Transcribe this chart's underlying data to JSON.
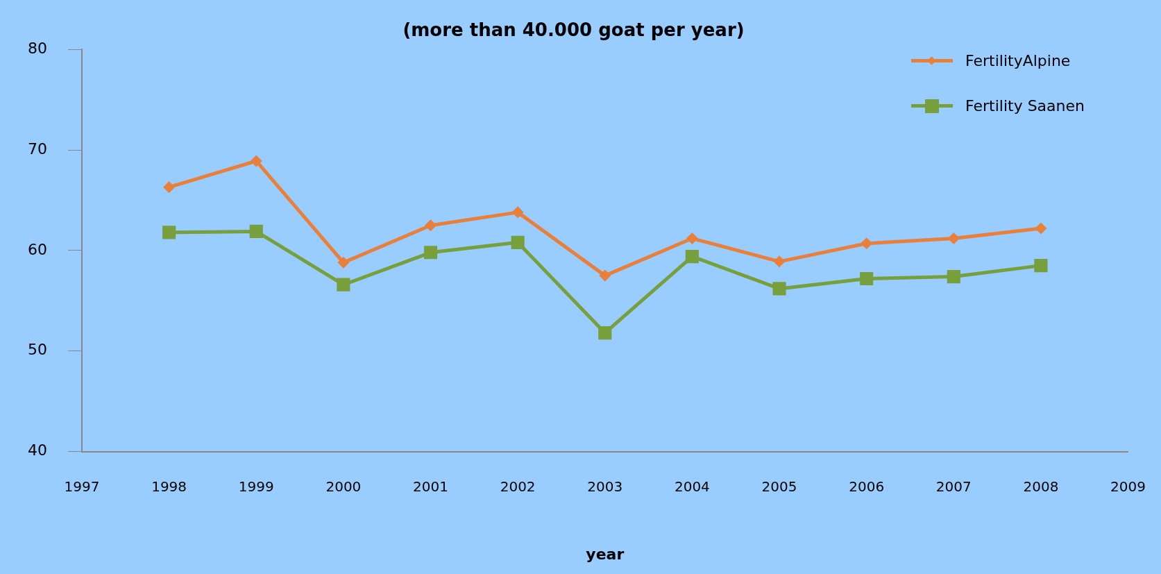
{
  "chart_data": {
    "type": "line",
    "title": "(more than 40.000 goat per year)",
    "xlabel": "year",
    "x": [
      1998,
      1999,
      2000,
      2001,
      2002,
      2003,
      2004,
      2005,
      2006,
      2007,
      2008
    ],
    "series": [
      {
        "name": "FertilityAlpine",
        "color": "#e8803a",
        "marker": "diamond",
        "values": [
          66.3,
          68.9,
          58.8,
          62.5,
          63.8,
          57.5,
          61.2,
          58.9,
          60.7,
          61.2,
          62.2
        ]
      },
      {
        "name": "Fertility Saanen",
        "color": "#77a03c",
        "marker": "square",
        "values": [
          61.8,
          61.9,
          56.6,
          59.8,
          60.8,
          51.8,
          59.4,
          56.2,
          57.2,
          57.4,
          58.5
        ]
      }
    ],
    "xlim": [
      1997,
      2009
    ],
    "xticks": [
      1997,
      1998,
      1999,
      2000,
      2001,
      2002,
      2003,
      2004,
      2005,
      2006,
      2007,
      2008,
      2009
    ],
    "ylim": [
      40,
      80
    ],
    "yticks": [
      40,
      50,
      60,
      70,
      80
    ],
    "grid": false,
    "legend": "top right"
  }
}
